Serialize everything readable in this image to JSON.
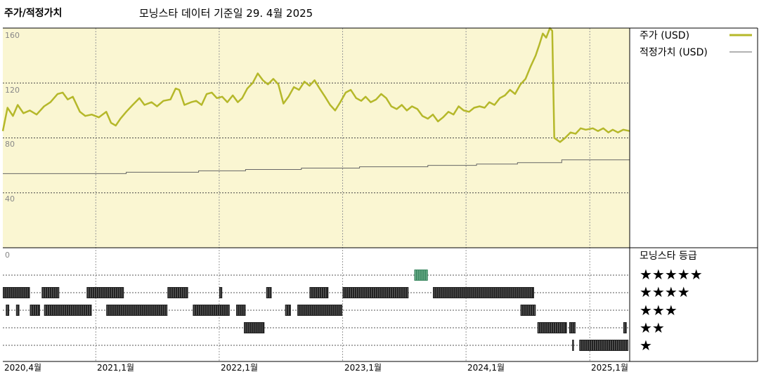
{
  "header": {
    "title": "주가/적정가치",
    "subtitle": "모닝스타 데이터 기준일 29. 4월 2025"
  },
  "legend": {
    "price_label": "주가 (USD)",
    "fair_label": "적정가치 (USD)",
    "rating_title": "모닝스타 등급"
  },
  "colors": {
    "price_line": "#b5b82a",
    "fair_line": "#666666",
    "panel_bg": "#faf6d2",
    "rating_bar": "#222222",
    "five_star_bar": "#3f8a64"
  },
  "chart_data": [
    {
      "type": "line",
      "x_range": [
        "2020-04-01",
        "2025-04-29"
      ],
      "ylim": [
        0,
        160
      ],
      "y_ticks": [
        0,
        40,
        80,
        120,
        160
      ],
      "x_tick_labels": [
        "2020,4월",
        "2021,1월",
        "2022,1월",
        "2023,1월",
        "2024,1월",
        "2025,1월"
      ],
      "series": [
        {
          "name": "주가 (USD)",
          "points": [
            [
              "2020-04-01",
              85
            ],
            [
              "2020-04-15",
              102
            ],
            [
              "2020-05-01",
              96
            ],
            [
              "2020-05-15",
              104
            ],
            [
              "2020-06-01",
              98
            ],
            [
              "2020-06-20",
              100
            ],
            [
              "2020-07-10",
              97
            ],
            [
              "2020-08-01",
              103
            ],
            [
              "2020-08-20",
              106
            ],
            [
              "2020-09-10",
              112
            ],
            [
              "2020-09-25",
              113
            ],
            [
              "2020-10-10",
              108
            ],
            [
              "2020-10-25",
              110
            ],
            [
              "2020-11-15",
              99
            ],
            [
              "2020-12-01",
              96
            ],
            [
              "2020-12-20",
              97
            ],
            [
              "2021-01-10",
              95
            ],
            [
              "2021-02-01",
              99
            ],
            [
              "2021-02-15",
              91
            ],
            [
              "2021-03-01",
              89
            ],
            [
              "2021-03-15",
              94
            ],
            [
              "2021-04-01",
              99
            ],
            [
              "2021-04-20",
              104
            ],
            [
              "2021-05-10",
              109
            ],
            [
              "2021-05-25",
              104
            ],
            [
              "2021-06-15",
              106
            ],
            [
              "2021-07-01",
              103
            ],
            [
              "2021-07-20",
              107
            ],
            [
              "2021-08-10",
              108
            ],
            [
              "2021-08-25",
              116
            ],
            [
              "2021-09-05",
              115
            ],
            [
              "2021-09-20",
              104
            ],
            [
              "2021-10-10",
              106
            ],
            [
              "2021-10-25",
              107
            ],
            [
              "2021-11-10",
              104
            ],
            [
              "2021-11-25",
              112
            ],
            [
              "2021-12-10",
              113
            ],
            [
              "2021-12-25",
              109
            ],
            [
              "2022-01-10",
              110
            ],
            [
              "2022-01-25",
              106
            ],
            [
              "2022-02-10",
              111
            ],
            [
              "2022-02-25",
              106
            ],
            [
              "2022-03-10",
              109
            ],
            [
              "2022-03-25",
              116
            ],
            [
              "2022-04-10",
              120
            ],
            [
              "2022-04-25",
              127
            ],
            [
              "2022-05-10",
              122
            ],
            [
              "2022-05-25",
              119
            ],
            [
              "2022-06-10",
              123
            ],
            [
              "2022-06-25",
              119
            ],
            [
              "2022-07-10",
              105
            ],
            [
              "2022-07-25",
              110
            ],
            [
              "2022-08-10",
              117
            ],
            [
              "2022-08-25",
              115
            ],
            [
              "2022-09-10",
              121
            ],
            [
              "2022-09-25",
              118
            ],
            [
              "2022-10-10",
              122
            ],
            [
              "2022-10-25",
              116
            ],
            [
              "2022-11-10",
              110
            ],
            [
              "2022-11-25",
              104
            ],
            [
              "2022-12-10",
              100
            ],
            [
              "2022-12-25",
              106
            ],
            [
              "2023-01-10",
              113
            ],
            [
              "2023-01-25",
              115
            ],
            [
              "2023-02-10",
              109
            ],
            [
              "2023-02-25",
              107
            ],
            [
              "2023-03-10",
              110
            ],
            [
              "2023-03-25",
              106
            ],
            [
              "2023-04-10",
              108
            ],
            [
              "2023-04-25",
              112
            ],
            [
              "2023-05-10",
              109
            ],
            [
              "2023-05-25",
              103
            ],
            [
              "2023-06-10",
              101
            ],
            [
              "2023-06-25",
              104
            ],
            [
              "2023-07-10",
              100
            ],
            [
              "2023-07-25",
              103
            ],
            [
              "2023-08-10",
              101
            ],
            [
              "2023-08-25",
              96
            ],
            [
              "2023-09-10",
              94
            ],
            [
              "2023-09-25",
              97
            ],
            [
              "2023-10-10",
              92
            ],
            [
              "2023-10-25",
              95
            ],
            [
              "2023-11-10",
              99
            ],
            [
              "2023-11-25",
              97
            ],
            [
              "2023-12-10",
              103
            ],
            [
              "2023-12-25",
              100
            ],
            [
              "2024-01-10",
              99
            ],
            [
              "2024-01-25",
              102
            ],
            [
              "2024-02-10",
              103
            ],
            [
              "2024-02-25",
              102
            ],
            [
              "2024-03-10",
              106
            ],
            [
              "2024-03-25",
              104
            ],
            [
              "2024-04-10",
              109
            ],
            [
              "2024-04-25",
              111
            ],
            [
              "2024-05-10",
              115
            ],
            [
              "2024-05-25",
              112
            ],
            [
              "2024-06-10",
              119
            ],
            [
              "2024-06-25",
              123
            ],
            [
              "2024-07-10",
              132
            ],
            [
              "2024-07-25",
              140
            ],
            [
              "2024-08-05",
              148
            ],
            [
              "2024-08-15",
              156
            ],
            [
              "2024-08-25",
              153
            ],
            [
              "2024-09-05",
              160
            ],
            [
              "2024-09-12",
              158
            ],
            [
              "2024-09-18",
              80
            ],
            [
              "2024-10-05",
              77
            ],
            [
              "2024-10-20",
              80
            ],
            [
              "2024-11-05",
              84
            ],
            [
              "2024-11-20",
              83
            ],
            [
              "2024-12-05",
              87
            ],
            [
              "2024-12-20",
              86
            ],
            [
              "2025-01-10",
              87
            ],
            [
              "2025-01-25",
              85
            ],
            [
              "2025-02-10",
              87
            ],
            [
              "2025-02-25",
              84
            ],
            [
              "2025-03-10",
              86
            ],
            [
              "2025-03-25",
              84
            ],
            [
              "2025-04-10",
              86
            ],
            [
              "2025-04-29",
              85
            ]
          ]
        },
        {
          "name": "적정가치 (USD)",
          "points": [
            [
              "2020-04-01",
              54
            ],
            [
              "2021-04-01",
              55
            ],
            [
              "2021-11-01",
              56
            ],
            [
              "2022-03-20",
              57
            ],
            [
              "2022-09-01",
              58
            ],
            [
              "2023-02-20",
              59
            ],
            [
              "2023-09-10",
              60
            ],
            [
              "2024-02-01",
              61
            ],
            [
              "2024-06-01",
              62
            ],
            [
              "2024-10-10",
              64
            ],
            [
              "2025-04-29",
              65
            ]
          ]
        }
      ]
    },
    {
      "type": "timeline",
      "title": "모닝스타 등급",
      "levels": [
        "★★★★★",
        "★★★★",
        "★★★",
        "★★",
        "★"
      ],
      "segments": [
        {
          "stars": 5,
          "start": "2023-08-01",
          "end": "2023-09-10"
        },
        {
          "stars": 4,
          "start": "2020-04-01",
          "end": "2020-06-20"
        },
        {
          "stars": 4,
          "start": "2020-07-25",
          "end": "2020-09-15"
        },
        {
          "stars": 4,
          "start": "2020-12-05",
          "end": "2021-03-25"
        },
        {
          "stars": 4,
          "start": "2021-08-01",
          "end": "2021-10-01"
        },
        {
          "stars": 4,
          "start": "2022-01-01",
          "end": "2022-01-10"
        },
        {
          "stars": 4,
          "start": "2022-05-20",
          "end": "2022-06-05"
        },
        {
          "stars": 4,
          "start": "2022-09-25",
          "end": "2022-11-20"
        },
        {
          "stars": 4,
          "start": "2023-01-01",
          "end": "2023-07-15"
        },
        {
          "stars": 4,
          "start": "2023-09-25",
          "end": "2024-07-20"
        },
        {
          "stars": 3,
          "start": "2020-04-10",
          "end": "2020-04-20"
        },
        {
          "stars": 3,
          "start": "2020-05-10",
          "end": "2020-05-20"
        },
        {
          "stars": 3,
          "start": "2020-06-20",
          "end": "2020-07-20"
        },
        {
          "stars": 3,
          "start": "2020-08-01",
          "end": "2020-12-20"
        },
        {
          "stars": 3,
          "start": "2021-02-01",
          "end": "2021-08-01"
        },
        {
          "stars": 3,
          "start": "2021-10-15",
          "end": "2022-02-01"
        },
        {
          "stars": 3,
          "start": "2022-02-20",
          "end": "2022-03-20"
        },
        {
          "stars": 3,
          "start": "2022-07-15",
          "end": "2022-08-01"
        },
        {
          "stars": 3,
          "start": "2022-08-20",
          "end": "2022-12-31"
        },
        {
          "stars": 3,
          "start": "2024-06-10",
          "end": "2024-07-25"
        },
        {
          "stars": 2,
          "start": "2022-03-15",
          "end": "2022-05-15"
        },
        {
          "stars": 2,
          "start": "2024-07-30",
          "end": "2024-10-25"
        },
        {
          "stars": 2,
          "start": "2024-11-01",
          "end": "2024-11-20"
        },
        {
          "stars": 2,
          "start": "2025-04-10",
          "end": "2025-04-20"
        },
        {
          "stars": 1,
          "start": "2024-11-10",
          "end": "2024-11-15"
        },
        {
          "stars": 1,
          "start": "2024-12-01",
          "end": "2025-04-25"
        }
      ]
    }
  ]
}
